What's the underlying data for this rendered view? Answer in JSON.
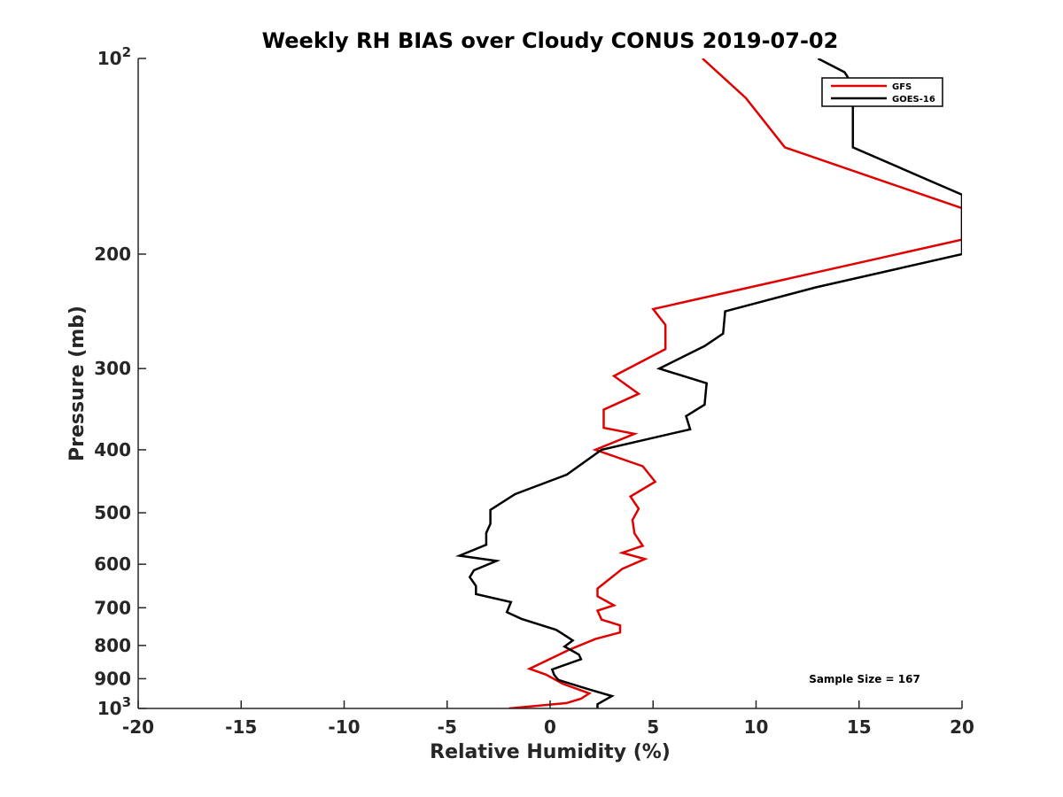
{
  "chart_data": {
    "type": "line",
    "title": "Weekly RH BIAS over Cloudy CONUS 2019-07-02",
    "xlabel": "Relative Humidity (%)",
    "ylabel": "Pressure (mb)",
    "xlim": [
      -20,
      20
    ],
    "ylim": [
      100,
      1000
    ],
    "y_scale": "log",
    "y_reversed": true,
    "grid": false,
    "legend_position": "top-right",
    "annotation": "Sample Size = 167",
    "x_ticks": [
      -20,
      -15,
      -10,
      -5,
      0,
      5,
      10,
      15,
      20
    ],
    "y_ticks": [
      {
        "value": 100,
        "base": "10",
        "exp": "2"
      },
      {
        "value": 200,
        "label": "200"
      },
      {
        "value": 300,
        "label": "300"
      },
      {
        "value": 400,
        "label": "400"
      },
      {
        "value": 500,
        "label": "500"
      },
      {
        "value": 600,
        "label": "600"
      },
      {
        "value": 700,
        "label": "700"
      },
      {
        "value": 800,
        "label": "800"
      },
      {
        "value": 900,
        "label": "900"
      },
      {
        "value": 1000,
        "base": "10",
        "exp": "3"
      }
    ],
    "series": [
      {
        "name": "GFS",
        "color": "#e00000",
        "points": [
          [
            7.4,
            100
          ],
          [
            9.5,
            115
          ],
          [
            11.4,
            137
          ],
          [
            20,
            170
          ],
          [
            20,
            190
          ],
          [
            5,
            243
          ],
          [
            5.6,
            257
          ],
          [
            5.6,
            280
          ],
          [
            3.1,
            308
          ],
          [
            4.3,
            328
          ],
          [
            2.6,
            347
          ],
          [
            2.6,
            370
          ],
          [
            4.1,
            378
          ],
          [
            2.2,
            400
          ],
          [
            4.5,
            424
          ],
          [
            5.1,
            448
          ],
          [
            3.9,
            472
          ],
          [
            4.3,
            493
          ],
          [
            4,
            513
          ],
          [
            4.1,
            538
          ],
          [
            4.5,
            562
          ],
          [
            3.5,
            576
          ],
          [
            4.6,
            589
          ],
          [
            3.5,
            610
          ],
          [
            2.3,
            654
          ],
          [
            2.3,
            672
          ],
          [
            3.1,
            694
          ],
          [
            2.3,
            707
          ],
          [
            2.5,
            730
          ],
          [
            3.4,
            745
          ],
          [
            3.4,
            764
          ],
          [
            2.2,
            782
          ],
          [
            0.9,
            813
          ],
          [
            -1,
            869
          ],
          [
            -0.2,
            887
          ],
          [
            0.6,
            916
          ],
          [
            1.9,
            948
          ],
          [
            1.5,
            966
          ],
          [
            0.8,
            981
          ],
          [
            -2,
            1000
          ]
        ]
      },
      {
        "name": "GOES-16",
        "color": "#000000",
        "points": [
          [
            13,
            100
          ],
          [
            14.3,
            105
          ],
          [
            14.7,
            110
          ],
          [
            14.7,
            137
          ],
          [
            20,
            162
          ],
          [
            20,
            200
          ],
          [
            12.9,
            225
          ],
          [
            8.5,
            245
          ],
          [
            8.4,
            265
          ],
          [
            7.5,
            277
          ],
          [
            5.3,
            300
          ],
          [
            7.6,
            316
          ],
          [
            7.5,
            341
          ],
          [
            6.6,
            355
          ],
          [
            6.8,
            372
          ],
          [
            2.5,
            400
          ],
          [
            0.8,
            437
          ],
          [
            -1.7,
            468
          ],
          [
            -2.9,
            495
          ],
          [
            -2.9,
            520
          ],
          [
            -3.1,
            537
          ],
          [
            -3.1,
            560
          ],
          [
            -4.4,
            582
          ],
          [
            -2.6,
            593
          ],
          [
            -3.7,
            613
          ],
          [
            -3.9,
            628
          ],
          [
            -3.6,
            648
          ],
          [
            -3.6,
            667
          ],
          [
            -1.9,
            686
          ],
          [
            -2.1,
            711
          ],
          [
            -1.4,
            728
          ],
          [
            0.3,
            757
          ],
          [
            0.8,
            775
          ],
          [
            1.1,
            786
          ],
          [
            0.7,
            803
          ],
          [
            1.4,
            826
          ],
          [
            1.5,
            840
          ],
          [
            0.1,
            871
          ],
          [
            0.2,
            888
          ],
          [
            0.4,
            904
          ],
          [
            1.9,
            935
          ],
          [
            3,
            957
          ],
          [
            2.3,
            985
          ],
          [
            2.3,
            1000
          ]
        ]
      }
    ]
  }
}
